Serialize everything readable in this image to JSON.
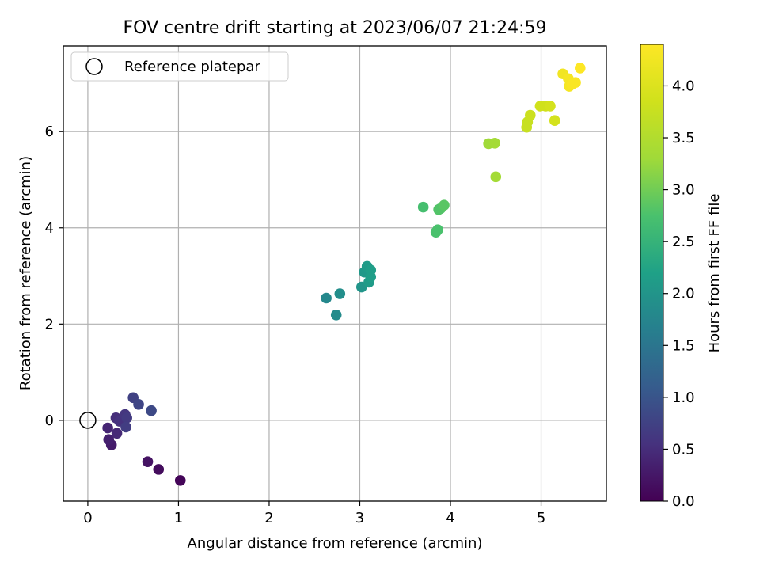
{
  "chart_data": {
    "type": "scatter",
    "title": "FOV centre drift starting at 2023/06/07 21:24:59",
    "xlabel": "Angular distance from reference (arcmin)",
    "ylabel": "Rotation from reference (arcmin)",
    "xlim": [
      -0.27,
      5.72
    ],
    "ylim": [
      -1.68,
      7.78
    ],
    "xticks": [
      0,
      1,
      2,
      3,
      4,
      5
    ],
    "yticks": [
      0,
      2,
      4,
      6
    ],
    "grid": true,
    "legend": {
      "placement": "top-left",
      "entries": [
        "Reference platepar"
      ]
    },
    "reference": {
      "x": 0,
      "y": 0
    },
    "colorbar": {
      "label": "Hours from first FF file",
      "range": [
        0.0,
        4.4
      ],
      "ticks": [
        "0.0",
        "0.5",
        "1.0",
        "1.5",
        "2.0",
        "2.5",
        "3.0",
        "3.5",
        "4.0"
      ],
      "colormap": "viridis"
    },
    "points": [
      {
        "x": 1.02,
        "y": -1.25,
        "c": 0.05
      },
      {
        "x": 0.78,
        "y": -1.02,
        "c": 0.12
      },
      {
        "x": 0.66,
        "y": -0.86,
        "c": 0.2
      },
      {
        "x": 0.26,
        "y": -0.51,
        "c": 0.3
      },
      {
        "x": 0.23,
        "y": -0.4,
        "c": 0.35
      },
      {
        "x": 0.22,
        "y": -0.16,
        "c": 0.4
      },
      {
        "x": 0.32,
        "y": -0.27,
        "c": 0.45
      },
      {
        "x": 0.31,
        "y": 0.05,
        "c": 0.5
      },
      {
        "x": 0.35,
        "y": -0.02,
        "c": 0.55
      },
      {
        "x": 0.41,
        "y": 0.12,
        "c": 0.6
      },
      {
        "x": 0.43,
        "y": 0.05,
        "c": 0.65
      },
      {
        "x": 0.42,
        "y": -0.14,
        "c": 0.7
      },
      {
        "x": 0.5,
        "y": 0.47,
        "c": 0.75
      },
      {
        "x": 0.56,
        "y": 0.33,
        "c": 0.8
      },
      {
        "x": 0.7,
        "y": 0.2,
        "c": 0.85
      },
      {
        "x": 2.63,
        "y": 2.54,
        "c": 1.8
      },
      {
        "x": 2.74,
        "y": 2.19,
        "c": 1.85
      },
      {
        "x": 2.78,
        "y": 2.63,
        "c": 1.9
      },
      {
        "x": 3.02,
        "y": 2.77,
        "c": 2.0
      },
      {
        "x": 3.05,
        "y": 3.08,
        "c": 2.05
      },
      {
        "x": 3.08,
        "y": 3.2,
        "c": 2.1
      },
      {
        "x": 3.1,
        "y": 2.87,
        "c": 2.1
      },
      {
        "x": 3.12,
        "y": 3.12,
        "c": 2.15
      },
      {
        "x": 3.12,
        "y": 2.98,
        "c": 2.15
      },
      {
        "x": 3.7,
        "y": 4.43,
        "c": 2.7
      },
      {
        "x": 3.84,
        "y": 3.91,
        "c": 2.75
      },
      {
        "x": 3.86,
        "y": 3.96,
        "c": 2.75
      },
      {
        "x": 3.87,
        "y": 4.38,
        "c": 2.8
      },
      {
        "x": 3.89,
        "y": 4.4,
        "c": 2.8
      },
      {
        "x": 3.93,
        "y": 4.47,
        "c": 2.85
      },
      {
        "x": 4.42,
        "y": 5.75,
        "c": 3.3
      },
      {
        "x": 4.49,
        "y": 5.76,
        "c": 3.35
      },
      {
        "x": 4.5,
        "y": 5.06,
        "c": 3.35
      },
      {
        "x": 4.84,
        "y": 6.09,
        "c": 3.75
      },
      {
        "x": 4.85,
        "y": 6.2,
        "c": 3.75
      },
      {
        "x": 4.88,
        "y": 6.34,
        "c": 3.8
      },
      {
        "x": 4.99,
        "y": 6.53,
        "c": 3.85
      },
      {
        "x": 5.05,
        "y": 6.53,
        "c": 3.85
      },
      {
        "x": 5.1,
        "y": 6.53,
        "c": 3.9
      },
      {
        "x": 5.15,
        "y": 6.23,
        "c": 3.9
      },
      {
        "x": 5.24,
        "y": 7.2,
        "c": 4.25
      },
      {
        "x": 5.3,
        "y": 7.1,
        "c": 4.3
      },
      {
        "x": 5.31,
        "y": 6.94,
        "c": 4.3
      },
      {
        "x": 5.34,
        "y": 6.98,
        "c": 4.35
      },
      {
        "x": 5.38,
        "y": 7.02,
        "c": 4.35
      },
      {
        "x": 5.43,
        "y": 7.32,
        "c": 4.4
      }
    ]
  }
}
